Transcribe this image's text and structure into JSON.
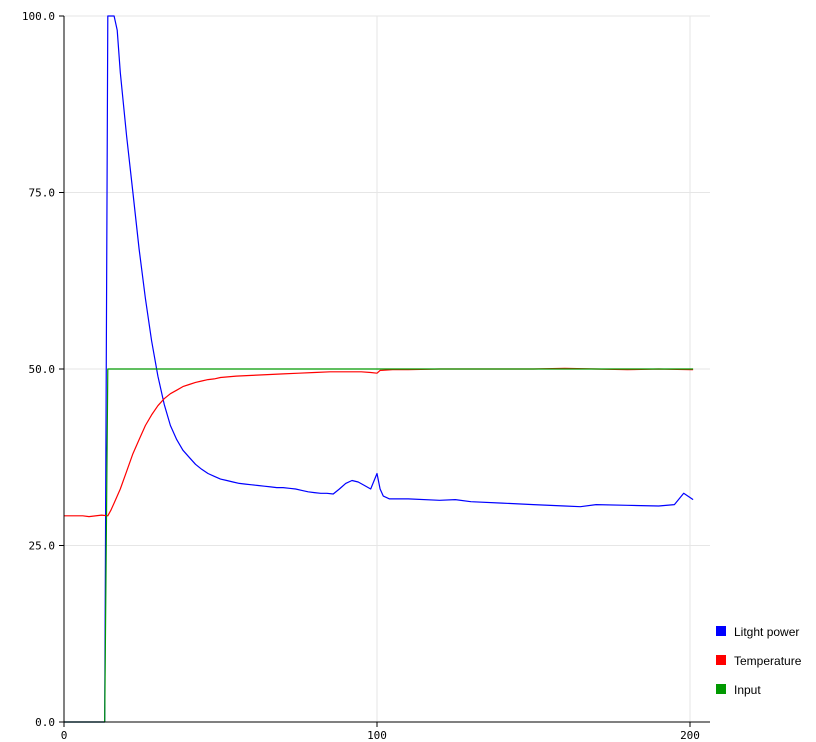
{
  "chart_data": {
    "type": "line",
    "title": "",
    "xlabel": "",
    "ylabel": "",
    "xlim": [
      0,
      205
    ],
    "ylim": [
      0,
      100
    ],
    "x_ticks": [
      0,
      100,
      200
    ],
    "x_tick_labels": [
      "0",
      "100",
      "200"
    ],
    "y_ticks": [
      0,
      25,
      50,
      75,
      100
    ],
    "y_tick_labels": [
      "0.0",
      "25.0",
      "50.0",
      "75.0",
      "100.0"
    ],
    "grid": true,
    "legend_position": "bottom-right",
    "series": [
      {
        "name": "Litght power",
        "color": "#0000ff",
        "points": [
          [
            0,
            0
          ],
          [
            13,
            0
          ],
          [
            14,
            100
          ],
          [
            16,
            100
          ],
          [
            17,
            98
          ],
          [
            18,
            92
          ],
          [
            20,
            83
          ],
          [
            22,
            75
          ],
          [
            24,
            67
          ],
          [
            26,
            60
          ],
          [
            28,
            54
          ],
          [
            30,
            49
          ],
          [
            32,
            45
          ],
          [
            34,
            42
          ],
          [
            36,
            40
          ],
          [
            38,
            38.5
          ],
          [
            40,
            37.5
          ],
          [
            42,
            36.5
          ],
          [
            44,
            35.8
          ],
          [
            46,
            35.2
          ],
          [
            48,
            34.8
          ],
          [
            50,
            34.4
          ],
          [
            52,
            34.2
          ],
          [
            54,
            34
          ],
          [
            56,
            33.8
          ],
          [
            58,
            33.7
          ],
          [
            60,
            33.6
          ],
          [
            62,
            33.5
          ],
          [
            64,
            33.4
          ],
          [
            66,
            33.3
          ],
          [
            68,
            33.2
          ],
          [
            70,
            33.2
          ],
          [
            72,
            33.1
          ],
          [
            74,
            33
          ],
          [
            76,
            32.8
          ],
          [
            78,
            32.6
          ],
          [
            80,
            32.5
          ],
          [
            82,
            32.4
          ],
          [
            84,
            32.4
          ],
          [
            86,
            32.3
          ],
          [
            88,
            33
          ],
          [
            90,
            33.8
          ],
          [
            92,
            34.2
          ],
          [
            94,
            34
          ],
          [
            96,
            33.5
          ],
          [
            98,
            33
          ],
          [
            100,
            35.2
          ],
          [
            101,
            33
          ],
          [
            102,
            32
          ],
          [
            104,
            31.6
          ],
          [
            110,
            31.6
          ],
          [
            120,
            31.4
          ],
          [
            125,
            31.5
          ],
          [
            130,
            31.2
          ],
          [
            140,
            31
          ],
          [
            150,
            30.8
          ],
          [
            160,
            30.6
          ],
          [
            165,
            30.5
          ],
          [
            170,
            30.8
          ],
          [
            180,
            30.7
          ],
          [
            190,
            30.6
          ],
          [
            195,
            30.8
          ],
          [
            198,
            32.4
          ],
          [
            200,
            31.8
          ],
          [
            201,
            31.5
          ]
        ]
      },
      {
        "name": "Temperature",
        "color": "#ff0000",
        "points": [
          [
            0,
            29.2
          ],
          [
            6,
            29.2
          ],
          [
            8,
            29.1
          ],
          [
            12,
            29.3
          ],
          [
            14,
            29.2
          ],
          [
            15,
            30
          ],
          [
            16,
            31
          ],
          [
            18,
            33
          ],
          [
            20,
            35.5
          ],
          [
            22,
            38
          ],
          [
            24,
            40
          ],
          [
            26,
            42
          ],
          [
            28,
            43.5
          ],
          [
            30,
            44.8
          ],
          [
            32,
            45.8
          ],
          [
            34,
            46.5
          ],
          [
            36,
            47
          ],
          [
            38,
            47.5
          ],
          [
            40,
            47.8
          ],
          [
            42,
            48.1
          ],
          [
            44,
            48.3
          ],
          [
            46,
            48.5
          ],
          [
            48,
            48.6
          ],
          [
            50,
            48.8
          ],
          [
            55,
            49
          ],
          [
            60,
            49.1
          ],
          [
            65,
            49.2
          ],
          [
            70,
            49.3
          ],
          [
            75,
            49.4
          ],
          [
            80,
            49.5
          ],
          [
            85,
            49.6
          ],
          [
            90,
            49.6
          ],
          [
            95,
            49.6
          ],
          [
            98,
            49.5
          ],
          [
            100,
            49.4
          ],
          [
            101,
            49.8
          ],
          [
            105,
            49.9
          ],
          [
            110,
            49.9
          ],
          [
            120,
            50
          ],
          [
            130,
            50
          ],
          [
            140,
            50
          ],
          [
            150,
            50
          ],
          [
            160,
            50.1
          ],
          [
            170,
            50
          ],
          [
            180,
            49.9
          ],
          [
            190,
            50
          ],
          [
            200,
            49.9
          ],
          [
            201,
            49.9
          ]
        ]
      },
      {
        "name": "Input",
        "color": "#009900",
        "points": [
          [
            0,
            0
          ],
          [
            13,
            0
          ],
          [
            14,
            50
          ],
          [
            201,
            50
          ]
        ]
      }
    ]
  }
}
